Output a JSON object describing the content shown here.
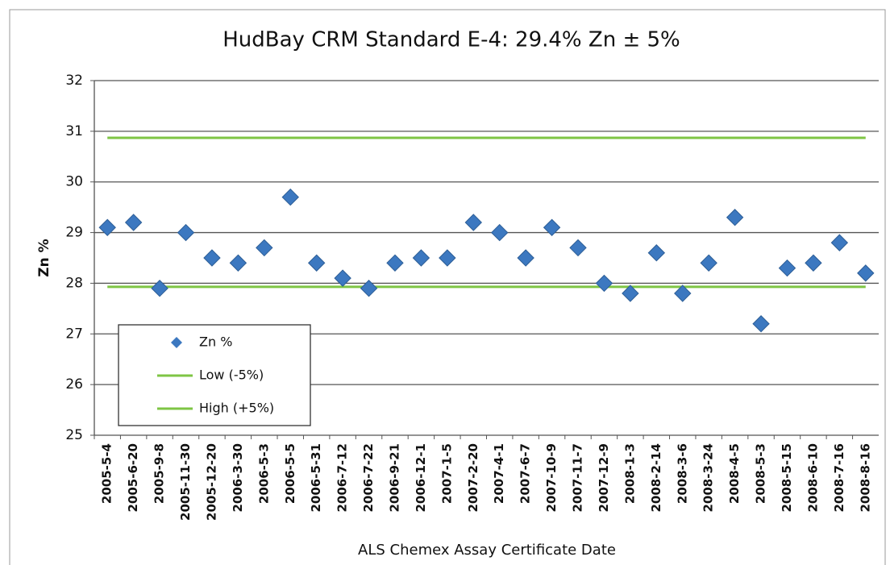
{
  "chart_data": {
    "type": "scatter",
    "title": "HudBay CRM Standard E-4: 29.4% Zn ± 5%",
    "x_label": "ALS Chemex Assay Certificate Date",
    "y_label": "Zn %",
    "categories": [
      "2005-5-4",
      "2005-6-20",
      "2005-9-8",
      "2005-11-30",
      "2005-12-20",
      "2006-3-30",
      "2006-5-3",
      "2006-5-5",
      "2006-5-31",
      "2006-7-12",
      "2006-7-22",
      "2006-9-21",
      "2006-12-1",
      "2007-1-5",
      "2007-2-20",
      "2007-4-1",
      "2007-6-7",
      "2007-10-9",
      "2007-11-7",
      "2007-12-9",
      "2008-1-3",
      "2008-2-14",
      "2008-3-6",
      "2008-3-24",
      "2008-4-5",
      "2008-5-3",
      "2008-5-15",
      "2008-6-10",
      "2008-7-16",
      "2008-8-16"
    ],
    "series": [
      {
        "name": "Zn %",
        "type": "scatter",
        "color": "#3c78c0",
        "values": [
          29.1,
          29.2,
          27.9,
          29.0,
          28.5,
          28.4,
          28.7,
          29.7,
          28.4,
          28.1,
          27.9,
          28.4,
          28.5,
          28.5,
          29.2,
          29.0,
          28.5,
          29.1,
          28.7,
          28.0,
          27.8,
          28.6,
          27.8,
          28.4,
          29.3,
          27.2,
          28.3,
          28.4,
          28.8,
          28.2
        ]
      },
      {
        "name": "Low (-5%)",
        "type": "line",
        "color": "#7ec544",
        "values": [
          27.93,
          27.93,
          27.93,
          27.93,
          27.93,
          27.93,
          27.93,
          27.93,
          27.93,
          27.93,
          27.93,
          27.93,
          27.93,
          27.93,
          27.93,
          27.93,
          27.93,
          27.93,
          27.93,
          27.93,
          27.93,
          27.93,
          27.93,
          27.93,
          27.93,
          27.93,
          27.93,
          27.93,
          27.93,
          27.93
        ]
      },
      {
        "name": "High (+5%)",
        "type": "line",
        "color": "#7ec544",
        "values": [
          30.87,
          30.87,
          30.87,
          30.87,
          30.87,
          30.87,
          30.87,
          30.87,
          30.87,
          30.87,
          30.87,
          30.87,
          30.87,
          30.87,
          30.87,
          30.87,
          30.87,
          30.87,
          30.87,
          30.87,
          30.87,
          30.87,
          30.87,
          30.87,
          30.87,
          30.87,
          30.87,
          30.87,
          30.87,
          30.87
        ]
      }
    ],
    "ylim": [
      25,
      32
    ],
    "yticks": [
      25,
      26,
      27,
      28,
      29,
      30,
      31,
      32
    ],
    "grid": true,
    "legend": "lower left"
  }
}
